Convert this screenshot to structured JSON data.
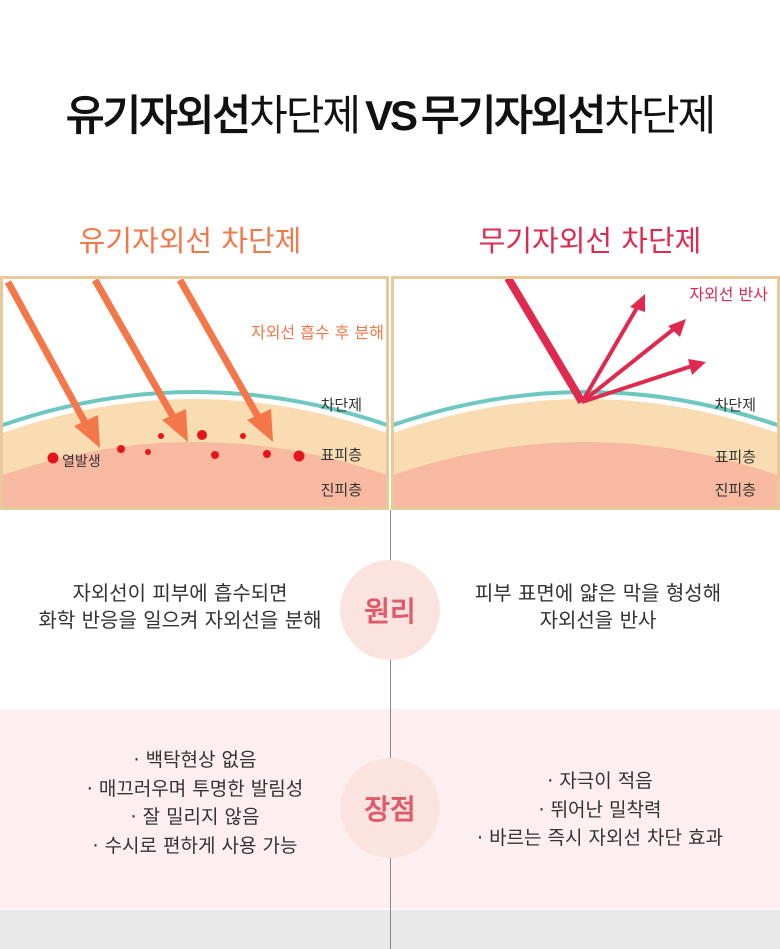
{
  "title": {
    "organic": "유기자외선",
    "sunscreen_word_1": "차단제",
    "vs": "VS",
    "inorganic": "무기자외선",
    "sunscreen_word_2": "차단제"
  },
  "columns": {
    "left_title": "유기자외선 차단제",
    "right_title": "무기자외선 차단제"
  },
  "diagram": {
    "left": {
      "annotation": "자외선 흡수 후 분해",
      "heat_label": "열발생",
      "layer_sunscreen": "차단제",
      "layer_epidermis": "표피층",
      "layer_dermis": "진피층"
    },
    "right": {
      "annotation": "자외선 반사",
      "layer_sunscreen": "차단제",
      "layer_epidermis": "표피층",
      "layer_dermis": "진피층"
    },
    "colors": {
      "frame": "#e8c99b",
      "orange_arrow": "#f37748",
      "red_arrow": "#e0294f",
      "sunscreen_line": "#6cc8c0",
      "epidermis": "#f9dcb2",
      "dermis": "#f7b9a0",
      "heat_dot": "#e8141c"
    }
  },
  "principle": {
    "label": "원리",
    "left_line1": "자외선이 피부에 흡수되면",
    "left_line2": "화학 반응을 일으켜 자외선을 분해",
    "right_line1": "피부 표면에 얇은 막을 형성해",
    "right_line2": "자외선을 반사"
  },
  "advantages": {
    "label": "장점",
    "left_items": [
      "백탁현상 없음",
      "매끄러우며 투명한 발림성",
      "잘 밀리지 않음",
      "수시로 편하게 사용 가능"
    ],
    "right_items": [
      "자극이 적음",
      "뛰어난 밀착력",
      "바르는 즉시 자외선 차단 효과"
    ]
  }
}
